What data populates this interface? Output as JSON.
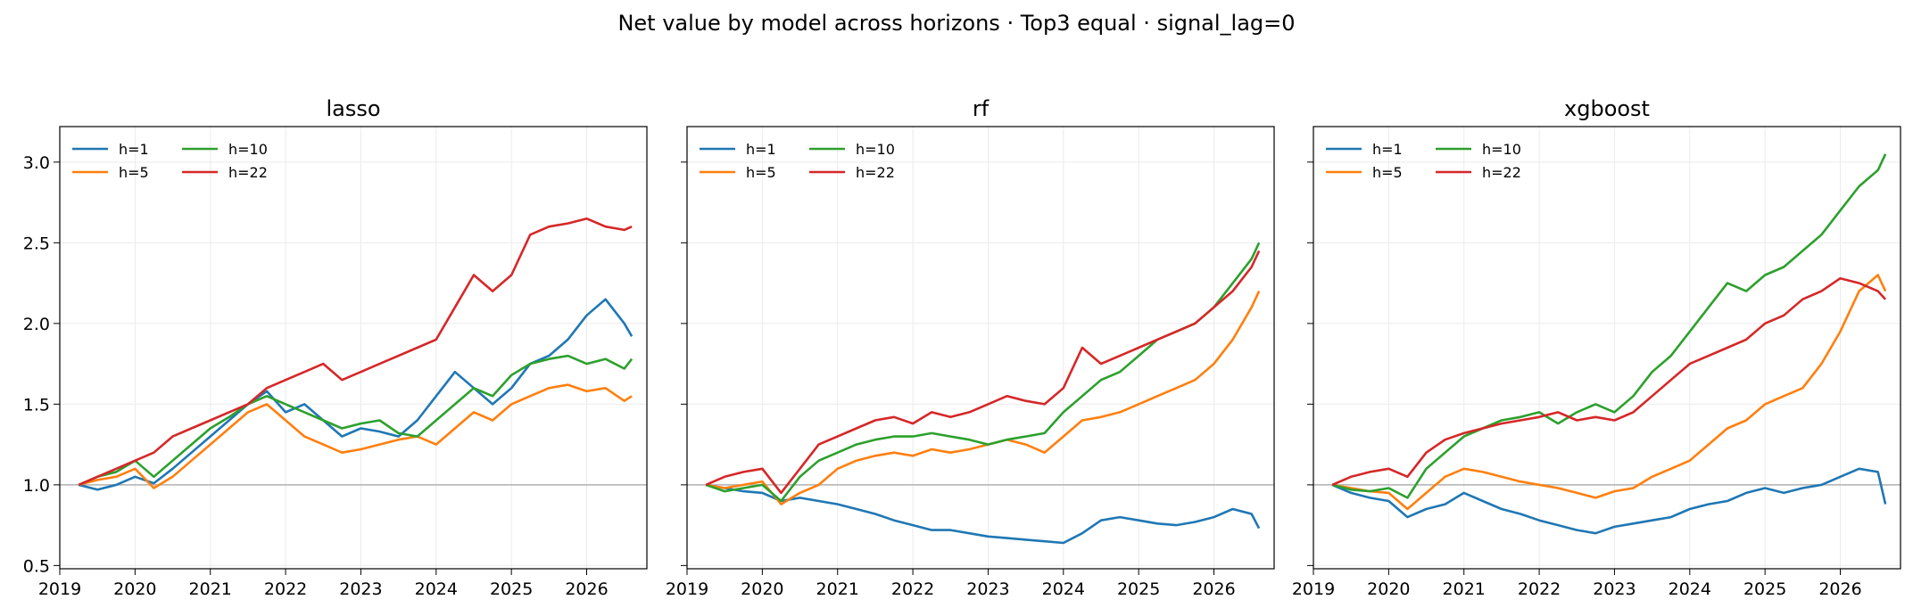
{
  "figure": {
    "title": "Net value by model across horizons · Top3 equal · signal_lag=0"
  },
  "colors": {
    "h=1": "#1f77b4",
    "h=5": "#ff7f0e",
    "h=10": "#2ca02c",
    "h=22": "#d62728",
    "baseline": "#b0b0b0",
    "grid": "#ebebeb"
  },
  "chart_data": [
    {
      "type": "line",
      "title": "lasso",
      "xlabel": "",
      "ylabel": "",
      "x_ticks": [
        "2019",
        "2020",
        "2021",
        "2022",
        "2023",
        "2024",
        "2025",
        "2026"
      ],
      "y_ticks": [
        "0.5",
        "1.0",
        "1.5",
        "2.0",
        "2.5",
        "3.0"
      ],
      "xlim": [
        2019.0,
        2026.8
      ],
      "ylim": [
        0.48,
        3.22
      ],
      "grid": true,
      "legend": "top-left",
      "baseline": 1.0,
      "series": [
        {
          "name": "h=1",
          "x": [
            2019.25,
            2019.5,
            2019.75,
            2020.0,
            2020.25,
            2020.5,
            2020.75,
            2021.0,
            2021.25,
            2021.5,
            2021.75,
            2022.0,
            2022.25,
            2022.5,
            2022.75,
            2023.0,
            2023.25,
            2023.5,
            2023.75,
            2024.0,
            2024.25,
            2024.5,
            2024.75,
            2025.0,
            2025.25,
            2025.5,
            2025.75,
            2026.0,
            2026.25,
            2026.5,
            2026.6
          ],
          "y": [
            1.0,
            0.97,
            1.0,
            1.05,
            1.01,
            1.1,
            1.2,
            1.3,
            1.4,
            1.5,
            1.58,
            1.45,
            1.5,
            1.4,
            1.3,
            1.35,
            1.33,
            1.3,
            1.4,
            1.55,
            1.7,
            1.6,
            1.5,
            1.6,
            1.75,
            1.8,
            1.9,
            2.05,
            2.15,
            2.0,
            1.92
          ]
        },
        {
          "name": "h=5",
          "x": [
            2019.25,
            2019.5,
            2019.75,
            2020.0,
            2020.25,
            2020.5,
            2020.75,
            2021.0,
            2021.25,
            2021.5,
            2021.75,
            2022.0,
            2022.25,
            2022.5,
            2022.75,
            2023.0,
            2023.25,
            2023.5,
            2023.75,
            2024.0,
            2024.25,
            2024.5,
            2024.75,
            2025.0,
            2025.25,
            2025.5,
            2025.75,
            2026.0,
            2026.25,
            2026.5,
            2026.6
          ],
          "y": [
            1.0,
            1.03,
            1.05,
            1.1,
            0.98,
            1.05,
            1.15,
            1.25,
            1.35,
            1.45,
            1.5,
            1.4,
            1.3,
            1.25,
            1.2,
            1.22,
            1.25,
            1.28,
            1.3,
            1.25,
            1.35,
            1.45,
            1.4,
            1.5,
            1.55,
            1.6,
            1.62,
            1.58,
            1.6,
            1.52,
            1.55
          ]
        },
        {
          "name": "h=10",
          "x": [
            2019.25,
            2019.5,
            2019.75,
            2020.0,
            2020.25,
            2020.5,
            2020.75,
            2021.0,
            2021.25,
            2021.5,
            2021.75,
            2022.0,
            2022.25,
            2022.5,
            2022.75,
            2023.0,
            2023.25,
            2023.5,
            2023.75,
            2024.0,
            2024.25,
            2024.5,
            2024.75,
            2025.0,
            2025.25,
            2025.5,
            2025.75,
            2026.0,
            2026.25,
            2026.5,
            2026.6
          ],
          "y": [
            1.0,
            1.05,
            1.08,
            1.15,
            1.05,
            1.15,
            1.25,
            1.35,
            1.42,
            1.5,
            1.55,
            1.5,
            1.45,
            1.4,
            1.35,
            1.38,
            1.4,
            1.32,
            1.3,
            1.4,
            1.5,
            1.6,
            1.55,
            1.68,
            1.75,
            1.78,
            1.8,
            1.75,
            1.78,
            1.72,
            1.78
          ]
        },
        {
          "name": "h=22",
          "x": [
            2019.25,
            2019.5,
            2019.75,
            2020.0,
            2020.25,
            2020.5,
            2020.75,
            2021.0,
            2021.25,
            2021.5,
            2021.75,
            2022.0,
            2022.25,
            2022.5,
            2022.75,
            2023.0,
            2023.25,
            2023.5,
            2023.75,
            2024.0,
            2024.25,
            2024.5,
            2024.75,
            2025.0,
            2025.25,
            2025.5,
            2025.75,
            2026.0,
            2026.25,
            2026.5,
            2026.6
          ],
          "y": [
            1.0,
            1.05,
            1.1,
            1.15,
            1.2,
            1.3,
            1.35,
            1.4,
            1.45,
            1.5,
            1.6,
            1.65,
            1.7,
            1.75,
            1.65,
            1.7,
            1.75,
            1.8,
            1.85,
            1.9,
            2.1,
            2.3,
            2.2,
            2.3,
            2.55,
            2.6,
            2.62,
            2.65,
            2.6,
            2.58,
            2.6
          ]
        }
      ]
    },
    {
      "type": "line",
      "title": "rf",
      "xlabel": "",
      "ylabel": "",
      "x_ticks": [
        "2019",
        "2020",
        "2021",
        "2022",
        "2023",
        "2024",
        "2025",
        "2026"
      ],
      "xlim": [
        2019.0,
        2026.8
      ],
      "ylim": [
        0.48,
        3.22
      ],
      "grid": true,
      "legend": "top-left",
      "baseline": 1.0,
      "series": [
        {
          "name": "h=1",
          "x": [
            2019.25,
            2019.5,
            2019.75,
            2020.0,
            2020.25,
            2020.5,
            2020.75,
            2021.0,
            2021.25,
            2021.5,
            2021.75,
            2022.0,
            2022.25,
            2022.5,
            2022.75,
            2023.0,
            2023.25,
            2023.5,
            2023.75,
            2024.0,
            2024.25,
            2024.5,
            2024.75,
            2025.0,
            2025.25,
            2025.5,
            2025.75,
            2026.0,
            2026.25,
            2026.5,
            2026.6
          ],
          "y": [
            1.0,
            0.98,
            0.96,
            0.95,
            0.9,
            0.92,
            0.9,
            0.88,
            0.85,
            0.82,
            0.78,
            0.75,
            0.72,
            0.72,
            0.7,
            0.68,
            0.67,
            0.66,
            0.65,
            0.64,
            0.7,
            0.78,
            0.8,
            0.78,
            0.76,
            0.75,
            0.77,
            0.8,
            0.85,
            0.82,
            0.73
          ]
        },
        {
          "name": "h=5",
          "x": [
            2019.25,
            2019.5,
            2019.75,
            2020.0,
            2020.25,
            2020.5,
            2020.75,
            2021.0,
            2021.25,
            2021.5,
            2021.75,
            2022.0,
            2022.25,
            2022.5,
            2022.75,
            2023.0,
            2023.25,
            2023.5,
            2023.75,
            2024.0,
            2024.25,
            2024.5,
            2024.75,
            2025.0,
            2025.25,
            2025.5,
            2025.75,
            2026.0,
            2026.25,
            2026.5,
            2026.6
          ],
          "y": [
            1.0,
            0.98,
            1.0,
            1.02,
            0.88,
            0.95,
            1.0,
            1.1,
            1.15,
            1.18,
            1.2,
            1.18,
            1.22,
            1.2,
            1.22,
            1.25,
            1.28,
            1.25,
            1.2,
            1.3,
            1.4,
            1.42,
            1.45,
            1.5,
            1.55,
            1.6,
            1.65,
            1.75,
            1.9,
            2.1,
            2.2
          ]
        },
        {
          "name": "h=10",
          "x": [
            2019.25,
            2019.5,
            2019.75,
            2020.0,
            2020.25,
            2020.5,
            2020.75,
            2021.0,
            2021.25,
            2021.5,
            2021.75,
            2022.0,
            2022.25,
            2022.5,
            2022.75,
            2023.0,
            2023.25,
            2023.5,
            2023.75,
            2024.0,
            2024.25,
            2024.5,
            2024.75,
            2025.0,
            2025.25,
            2025.5,
            2025.75,
            2026.0,
            2026.25,
            2026.5,
            2026.6
          ],
          "y": [
            1.0,
            0.96,
            0.98,
            1.0,
            0.9,
            1.05,
            1.15,
            1.2,
            1.25,
            1.28,
            1.3,
            1.3,
            1.32,
            1.3,
            1.28,
            1.25,
            1.28,
            1.3,
            1.32,
            1.45,
            1.55,
            1.65,
            1.7,
            1.8,
            1.9,
            1.95,
            2.0,
            2.1,
            2.25,
            2.4,
            2.5
          ]
        },
        {
          "name": "h=22",
          "x": [
            2019.25,
            2019.5,
            2019.75,
            2020.0,
            2020.25,
            2020.5,
            2020.75,
            2021.0,
            2021.25,
            2021.5,
            2021.75,
            2022.0,
            2022.25,
            2022.5,
            2022.75,
            2023.0,
            2023.25,
            2023.5,
            2023.75,
            2024.0,
            2024.25,
            2024.5,
            2024.75,
            2025.0,
            2025.25,
            2025.5,
            2025.75,
            2026.0,
            2026.25,
            2026.5,
            2026.6
          ],
          "y": [
            1.0,
            1.05,
            1.08,
            1.1,
            0.95,
            1.1,
            1.25,
            1.3,
            1.35,
            1.4,
            1.42,
            1.38,
            1.45,
            1.42,
            1.45,
            1.5,
            1.55,
            1.52,
            1.5,
            1.6,
            1.85,
            1.75,
            1.8,
            1.85,
            1.9,
            1.95,
            2.0,
            2.1,
            2.2,
            2.35,
            2.45
          ]
        }
      ]
    },
    {
      "type": "line",
      "title": "xgboost",
      "xlabel": "",
      "ylabel": "",
      "x_ticks": [
        "2019",
        "2020",
        "2021",
        "2022",
        "2023",
        "2024",
        "2025",
        "2026"
      ],
      "xlim": [
        2019.0,
        2026.8
      ],
      "ylim": [
        0.48,
        3.22
      ],
      "grid": true,
      "legend": "top-left",
      "baseline": 1.0,
      "series": [
        {
          "name": "h=1",
          "x": [
            2019.25,
            2019.5,
            2019.75,
            2020.0,
            2020.25,
            2020.5,
            2020.75,
            2021.0,
            2021.25,
            2021.5,
            2021.75,
            2022.0,
            2022.25,
            2022.5,
            2022.75,
            2023.0,
            2023.25,
            2023.5,
            2023.75,
            2024.0,
            2024.25,
            2024.5,
            2024.75,
            2025.0,
            2025.25,
            2025.5,
            2025.75,
            2026.0,
            2026.25,
            2026.5,
            2026.6
          ],
          "y": [
            1.0,
            0.95,
            0.92,
            0.9,
            0.8,
            0.85,
            0.88,
            0.95,
            0.9,
            0.85,
            0.82,
            0.78,
            0.75,
            0.72,
            0.7,
            0.74,
            0.76,
            0.78,
            0.8,
            0.85,
            0.88,
            0.9,
            0.95,
            0.98,
            0.95,
            0.98,
            1.0,
            1.05,
            1.1,
            1.08,
            0.88
          ]
        },
        {
          "name": "h=5",
          "x": [
            2019.25,
            2019.5,
            2019.75,
            2020.0,
            2020.25,
            2020.5,
            2020.75,
            2021.0,
            2021.25,
            2021.5,
            2021.75,
            2022.0,
            2022.25,
            2022.5,
            2022.75,
            2023.0,
            2023.25,
            2023.5,
            2023.75,
            2024.0,
            2024.25,
            2024.5,
            2024.75,
            2025.0,
            2025.25,
            2025.5,
            2025.75,
            2026.0,
            2026.25,
            2026.5,
            2026.6
          ],
          "y": [
            1.0,
            0.98,
            0.96,
            0.95,
            0.85,
            0.95,
            1.05,
            1.1,
            1.08,
            1.05,
            1.02,
            1.0,
            0.98,
            0.95,
            0.92,
            0.96,
            0.98,
            1.05,
            1.1,
            1.15,
            1.25,
            1.35,
            1.4,
            1.5,
            1.55,
            1.6,
            1.75,
            1.95,
            2.2,
            2.3,
            2.2
          ]
        },
        {
          "name": "h=10",
          "x": [
            2019.25,
            2019.5,
            2019.75,
            2020.0,
            2020.25,
            2020.5,
            2020.75,
            2021.0,
            2021.25,
            2021.5,
            2021.75,
            2022.0,
            2022.25,
            2022.5,
            2022.75,
            2023.0,
            2023.25,
            2023.5,
            2023.75,
            2024.0,
            2024.25,
            2024.5,
            2024.75,
            2025.0,
            2025.25,
            2025.5,
            2025.75,
            2026.0,
            2026.25,
            2026.5,
            2026.6
          ],
          "y": [
            1.0,
            0.97,
            0.96,
            0.98,
            0.92,
            1.1,
            1.2,
            1.3,
            1.35,
            1.4,
            1.42,
            1.45,
            1.38,
            1.45,
            1.5,
            1.45,
            1.55,
            1.7,
            1.8,
            1.95,
            2.1,
            2.25,
            2.2,
            2.3,
            2.35,
            2.45,
            2.55,
            2.7,
            2.85,
            2.95,
            3.05
          ]
        },
        {
          "name": "h=22",
          "x": [
            2019.25,
            2019.5,
            2019.75,
            2020.0,
            2020.25,
            2020.5,
            2020.75,
            2021.0,
            2021.25,
            2021.5,
            2021.75,
            2022.0,
            2022.25,
            2022.5,
            2022.75,
            2023.0,
            2023.25,
            2023.5,
            2023.75,
            2024.0,
            2024.25,
            2024.5,
            2024.75,
            2025.0,
            2025.25,
            2025.5,
            2025.75,
            2026.0,
            2026.25,
            2026.5,
            2026.6
          ],
          "y": [
            1.0,
            1.05,
            1.08,
            1.1,
            1.05,
            1.2,
            1.28,
            1.32,
            1.35,
            1.38,
            1.4,
            1.42,
            1.45,
            1.4,
            1.42,
            1.4,
            1.45,
            1.55,
            1.65,
            1.75,
            1.8,
            1.85,
            1.9,
            2.0,
            2.05,
            2.15,
            2.2,
            2.28,
            2.25,
            2.2,
            2.15
          ]
        }
      ]
    }
  ]
}
